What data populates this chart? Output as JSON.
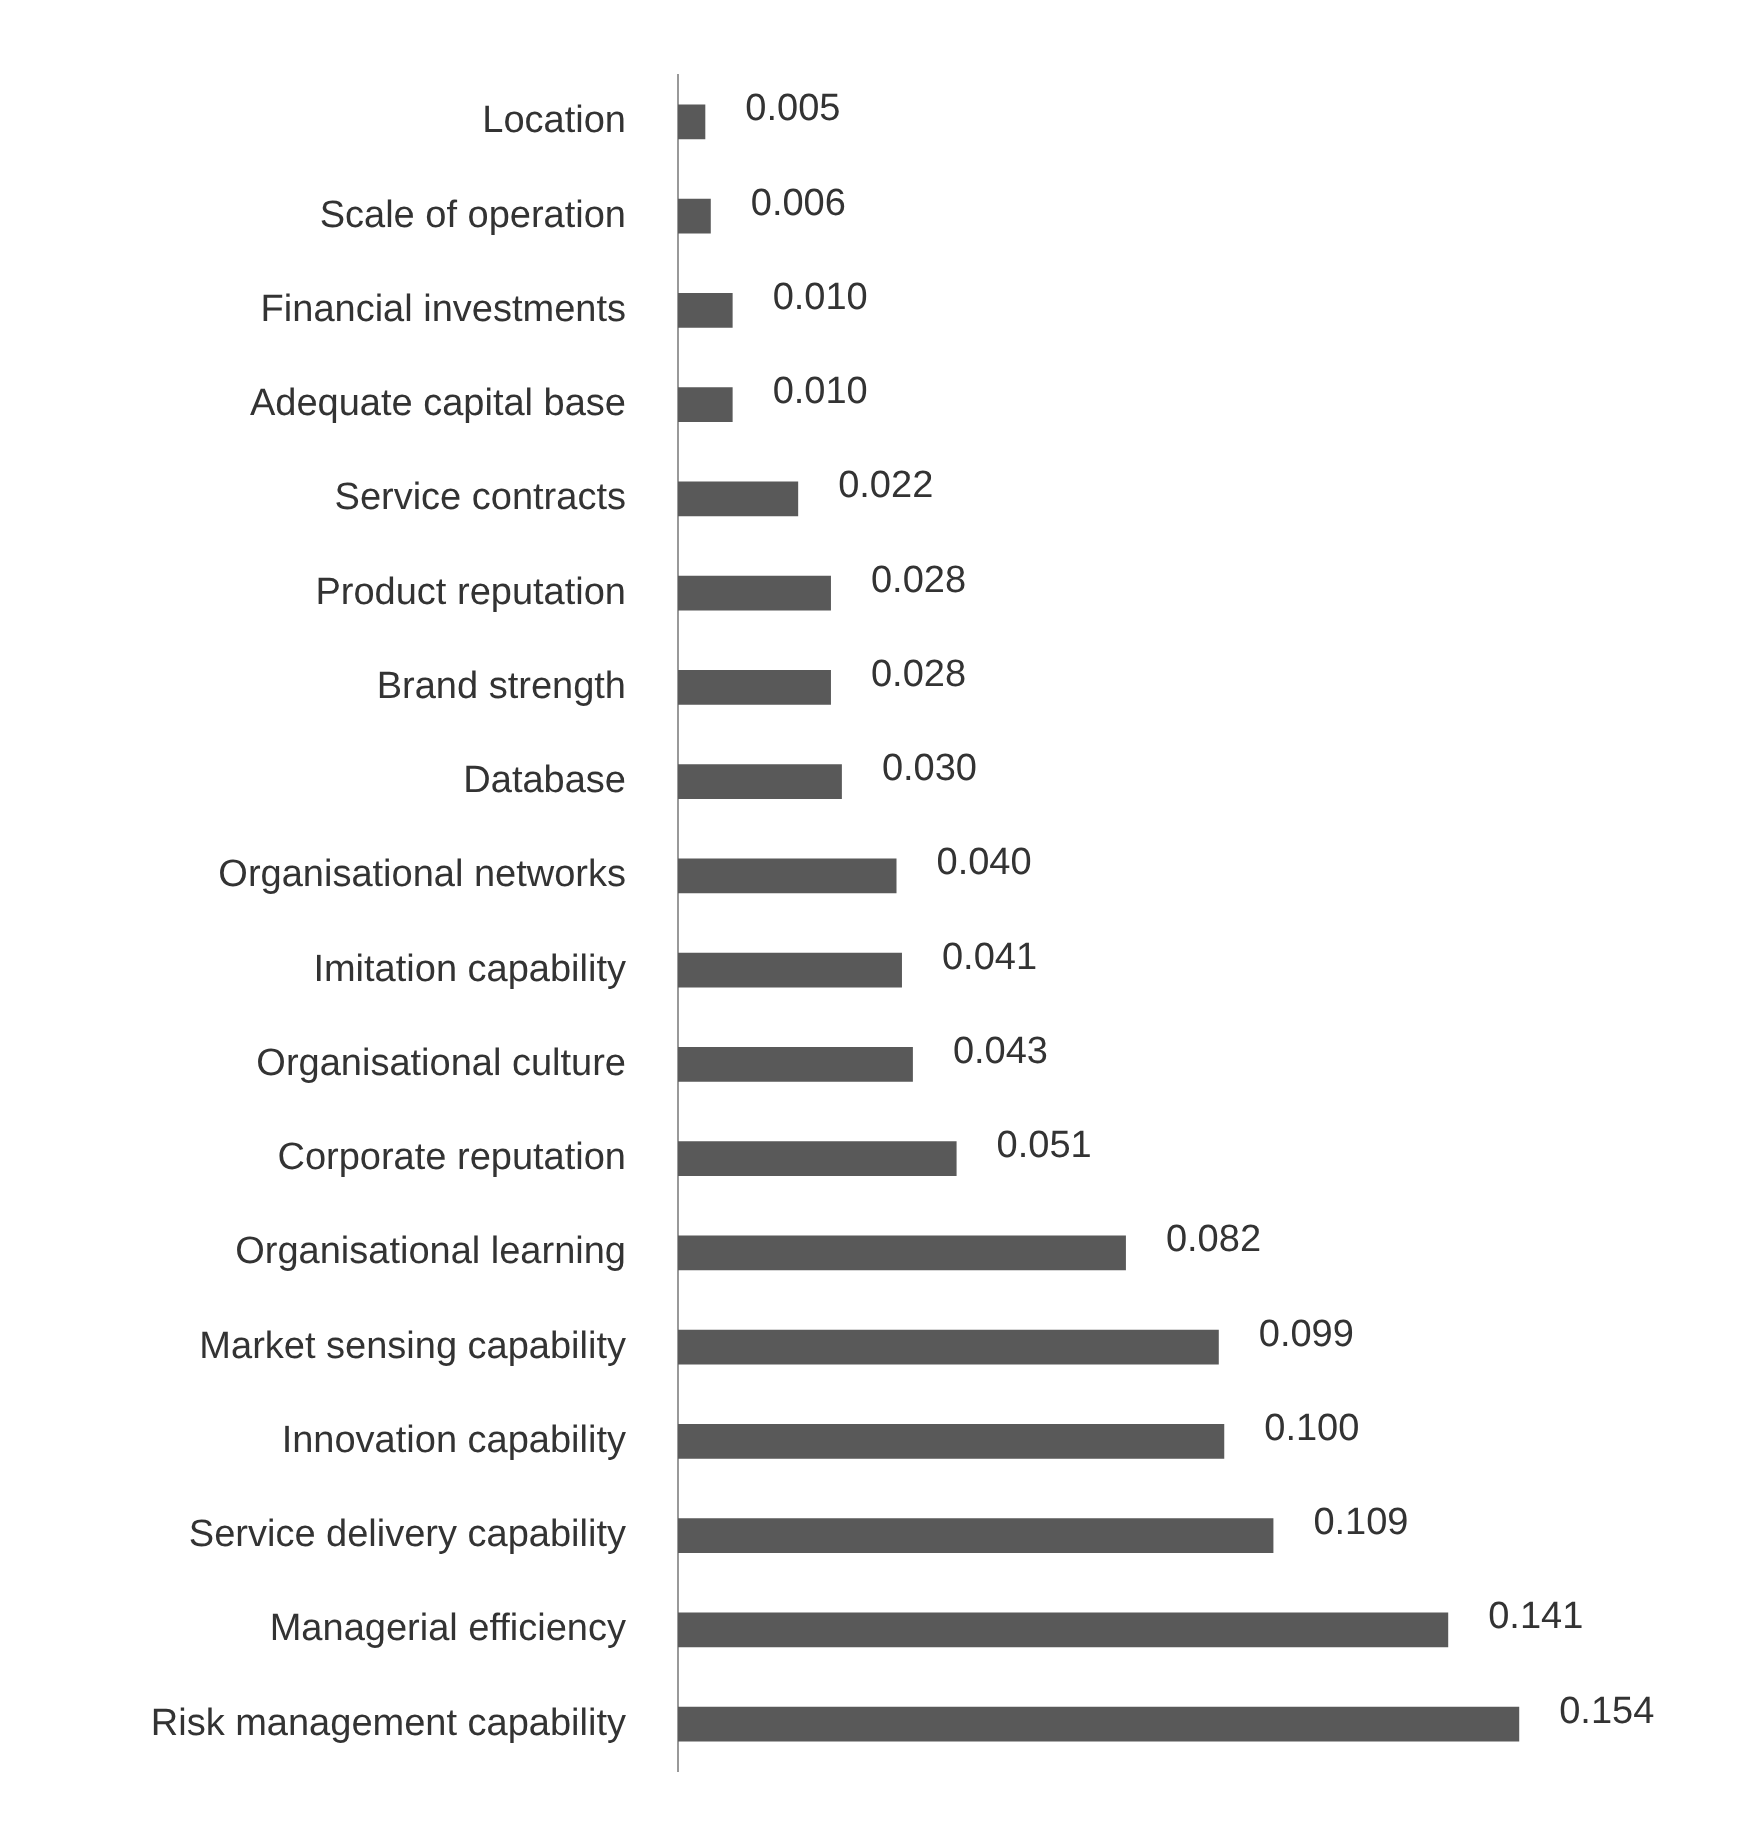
{
  "chart_data": {
    "type": "bar",
    "orientation": "horizontal",
    "data_labels": true,
    "legend": false,
    "tick_labels": "y",
    "categories": [
      "Location",
      "Scale of operation",
      "Financial investments",
      "Adequate capital base",
      "Service contracts",
      "Product reputation",
      "Brand strength",
      "Database",
      "Organisational networks",
      "Imitation capability",
      "Organisational culture",
      "Corporate reputation",
      "Organisational learning",
      "Market sensing capability",
      "Innovation capability",
      "Service delivery capability",
      "Managerial efficiency",
      "Risk management capability"
    ],
    "values": [
      0.005,
      0.006,
      0.01,
      0.01,
      0.022,
      0.028,
      0.028,
      0.03,
      0.04,
      0.041,
      0.043,
      0.051,
      0.082,
      0.099,
      0.1,
      0.109,
      0.141,
      0.154
    ],
    "value_labels": [
      "0.005",
      "0.006",
      "0.010",
      "0.010",
      "0.022",
      "0.028",
      "0.028",
      "0.030",
      "0.040",
      "0.041",
      "0.043",
      "0.051",
      "0.082",
      "0.099",
      "0.100",
      "0.109",
      "0.141",
      "0.154"
    ],
    "color": "#595959"
  }
}
